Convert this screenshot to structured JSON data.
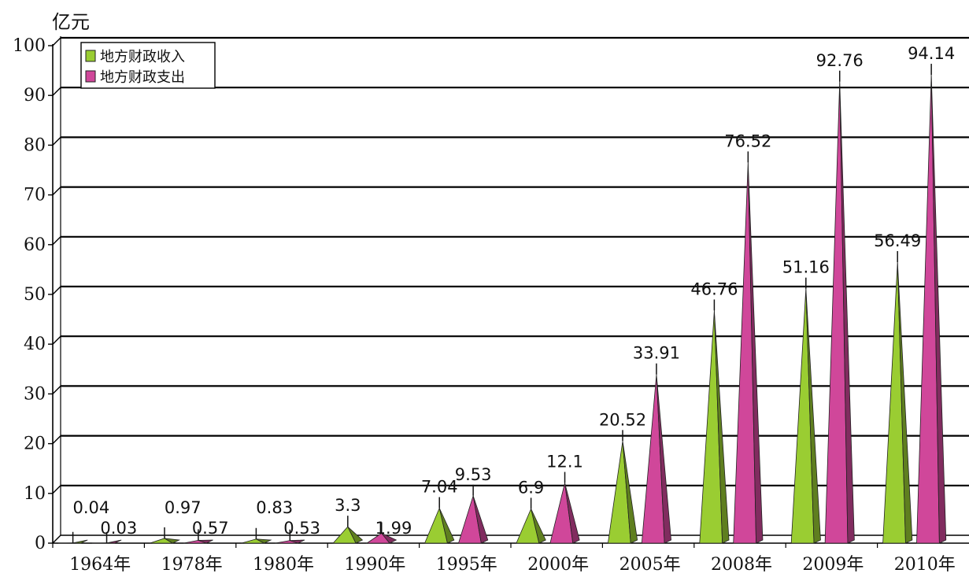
{
  "chart_data": {
    "type": "bar",
    "style": "3d-cone",
    "ylabel": "亿元",
    "ylim": [
      0,
      100
    ],
    "yticks": [
      0,
      10,
      20,
      30,
      40,
      50,
      60,
      70,
      80,
      90,
      100
    ],
    "grid": true,
    "legend_position": "top-left",
    "categories": [
      "1964年",
      "1978年",
      "1980年",
      "1990年",
      "1995年",
      "2000年",
      "2005年",
      "2008年",
      "2009年",
      "2010年"
    ],
    "series": [
      {
        "name": "地方财政收入",
        "color": "#9acd32",
        "values": [
          0.04,
          0.97,
          0.83,
          3.3,
          7.04,
          6.9,
          20.52,
          46.76,
          51.16,
          56.49
        ]
      },
      {
        "name": "地方财政支出",
        "color": "#d0479a",
        "values": [
          0.03,
          0.57,
          0.53,
          1.99,
          9.53,
          12.1,
          33.91,
          76.52,
          92.76,
          94.14
        ]
      }
    ],
    "value_labels": [
      [
        "0.04",
        "0.97",
        "0.83",
        "3.3",
        "7.04",
        "6.9",
        "20.52",
        "46.76",
        "51.16",
        "56.49"
      ],
      [
        "0.03",
        "0.57",
        "0.53",
        "1.99",
        "9.53",
        "12.1",
        "33.91",
        "76.52",
        "92.76",
        "94.14"
      ]
    ]
  }
}
